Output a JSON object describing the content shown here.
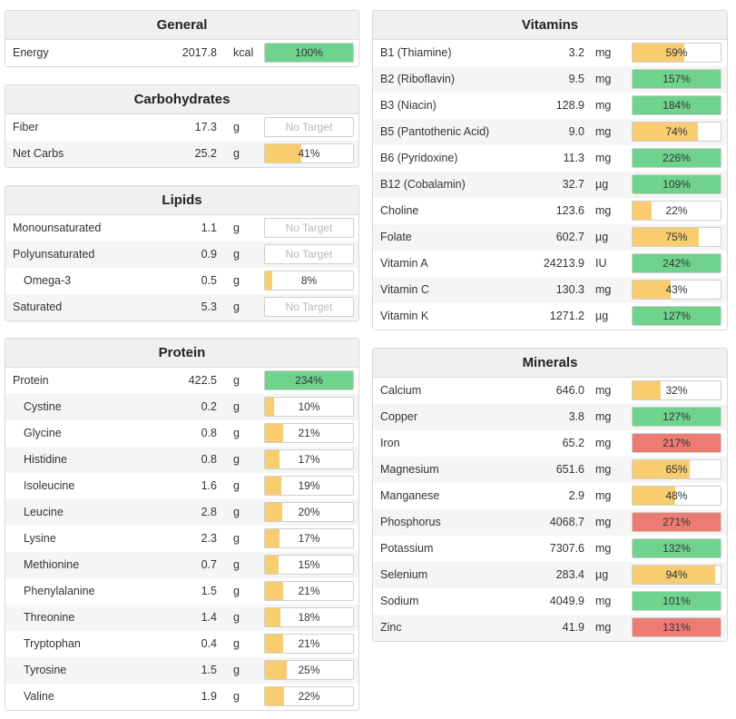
{
  "colors": {
    "green": "#6fd38e",
    "yellow": "#f7cd6f",
    "red": "#ec7b74"
  },
  "sections": [
    {
      "id": "general",
      "title": "General",
      "side": "left",
      "rows": [
        {
          "name": "Energy",
          "amount": "2017.8",
          "unit": "kcal",
          "pct": "100%",
          "fill": 1.0,
          "color": "green"
        }
      ]
    },
    {
      "id": "carbohydrates",
      "title": "Carbohydrates",
      "side": "left",
      "rows": [
        {
          "name": "Fiber",
          "amount": "17.3",
          "unit": "g",
          "pct": "No Target",
          "fill": 0,
          "color": "none"
        },
        {
          "name": "Net Carbs",
          "amount": "25.2",
          "unit": "g",
          "pct": "41%",
          "fill": 0.41,
          "color": "yellow"
        }
      ]
    },
    {
      "id": "lipids",
      "title": "Lipids",
      "side": "left",
      "rows": [
        {
          "name": "Monounsaturated",
          "amount": "1.1",
          "unit": "g",
          "pct": "No Target",
          "fill": 0,
          "color": "none"
        },
        {
          "name": "Polyunsaturated",
          "amount": "0.9",
          "unit": "g",
          "pct": "No Target",
          "fill": 0,
          "color": "none"
        },
        {
          "name": "Omega-3",
          "amount": "0.5",
          "unit": "g",
          "pct": "8%",
          "fill": 0.08,
          "color": "yellow",
          "indent": true
        },
        {
          "name": "Saturated",
          "amount": "5.3",
          "unit": "g",
          "pct": "No Target",
          "fill": 0,
          "color": "none"
        }
      ]
    },
    {
      "id": "protein",
      "title": "Protein",
      "side": "left",
      "rows": [
        {
          "name": "Protein",
          "amount": "422.5",
          "unit": "g",
          "pct": "234%",
          "fill": 1.0,
          "color": "green"
        },
        {
          "name": "Cystine",
          "amount": "0.2",
          "unit": "g",
          "pct": "10%",
          "fill": 0.1,
          "color": "yellow",
          "indent": true
        },
        {
          "name": "Glycine",
          "amount": "0.8",
          "unit": "g",
          "pct": "21%",
          "fill": 0.21,
          "color": "yellow",
          "indent": true
        },
        {
          "name": "Histidine",
          "amount": "0.8",
          "unit": "g",
          "pct": "17%",
          "fill": 0.17,
          "color": "yellow",
          "indent": true
        },
        {
          "name": "Isoleucine",
          "amount": "1.6",
          "unit": "g",
          "pct": "19%",
          "fill": 0.19,
          "color": "yellow",
          "indent": true
        },
        {
          "name": "Leucine",
          "amount": "2.8",
          "unit": "g",
          "pct": "20%",
          "fill": 0.2,
          "color": "yellow",
          "indent": true
        },
        {
          "name": "Lysine",
          "amount": "2.3",
          "unit": "g",
          "pct": "17%",
          "fill": 0.17,
          "color": "yellow",
          "indent": true
        },
        {
          "name": "Methionine",
          "amount": "0.7",
          "unit": "g",
          "pct": "15%",
          "fill": 0.15,
          "color": "yellow",
          "indent": true
        },
        {
          "name": "Phenylalanine",
          "amount": "1.5",
          "unit": "g",
          "pct": "21%",
          "fill": 0.21,
          "color": "yellow",
          "indent": true
        },
        {
          "name": "Threonine",
          "amount": "1.4",
          "unit": "g",
          "pct": "18%",
          "fill": 0.18,
          "color": "yellow",
          "indent": true
        },
        {
          "name": "Tryptophan",
          "amount": "0.4",
          "unit": "g",
          "pct": "21%",
          "fill": 0.21,
          "color": "yellow",
          "indent": true
        },
        {
          "name": "Tyrosine",
          "amount": "1.5",
          "unit": "g",
          "pct": "25%",
          "fill": 0.25,
          "color": "yellow",
          "indent": true
        },
        {
          "name": "Valine",
          "amount": "1.9",
          "unit": "g",
          "pct": "22%",
          "fill": 0.22,
          "color": "yellow",
          "indent": true
        }
      ]
    },
    {
      "id": "vitamins",
      "title": "Vitamins",
      "side": "right",
      "rows": [
        {
          "name": "B1 (Thiamine)",
          "amount": "3.2",
          "unit": "mg",
          "pct": "59%",
          "fill": 0.59,
          "color": "yellow"
        },
        {
          "name": "B2 (Riboflavin)",
          "amount": "9.5",
          "unit": "mg",
          "pct": "157%",
          "fill": 1.0,
          "color": "green"
        },
        {
          "name": "B3 (Niacin)",
          "amount": "128.9",
          "unit": "mg",
          "pct": "184%",
          "fill": 1.0,
          "color": "green"
        },
        {
          "name": "B5 (Pantothenic Acid)",
          "amount": "9.0",
          "unit": "mg",
          "pct": "74%",
          "fill": 0.74,
          "color": "yellow"
        },
        {
          "name": "B6 (Pyridoxine)",
          "amount": "11.3",
          "unit": "mg",
          "pct": "226%",
          "fill": 1.0,
          "color": "green"
        },
        {
          "name": "B12 (Cobalamin)",
          "amount": "32.7",
          "unit": "µg",
          "pct": "109%",
          "fill": 1.0,
          "color": "green"
        },
        {
          "name": "Choline",
          "amount": "123.6",
          "unit": "mg",
          "pct": "22%",
          "fill": 0.22,
          "color": "yellow"
        },
        {
          "name": "Folate",
          "amount": "602.7",
          "unit": "µg",
          "pct": "75%",
          "fill": 0.75,
          "color": "yellow"
        },
        {
          "name": "Vitamin A",
          "amount": "24213.9",
          "unit": "IU",
          "pct": "242%",
          "fill": 1.0,
          "color": "green"
        },
        {
          "name": "Vitamin C",
          "amount": "130.3",
          "unit": "mg",
          "pct": "43%",
          "fill": 0.43,
          "color": "yellow"
        },
        {
          "name": "Vitamin K",
          "amount": "1271.2",
          "unit": "µg",
          "pct": "127%",
          "fill": 1.0,
          "color": "green"
        }
      ]
    },
    {
      "id": "minerals",
      "title": "Minerals",
      "side": "right",
      "rows": [
        {
          "name": "Calcium",
          "amount": "646.0",
          "unit": "mg",
          "pct": "32%",
          "fill": 0.32,
          "color": "yellow"
        },
        {
          "name": "Copper",
          "amount": "3.8",
          "unit": "mg",
          "pct": "127%",
          "fill": 1.0,
          "color": "green"
        },
        {
          "name": "Iron",
          "amount": "65.2",
          "unit": "mg",
          "pct": "217%",
          "fill": 1.0,
          "color": "red"
        },
        {
          "name": "Magnesium",
          "amount": "651.6",
          "unit": "mg",
          "pct": "65%",
          "fill": 0.65,
          "color": "yellow"
        },
        {
          "name": "Manganese",
          "amount": "2.9",
          "unit": "mg",
          "pct": "48%",
          "fill": 0.48,
          "color": "yellow"
        },
        {
          "name": "Phosphorus",
          "amount": "4068.7",
          "unit": "mg",
          "pct": "271%",
          "fill": 1.0,
          "color": "red"
        },
        {
          "name": "Potassium",
          "amount": "7307.6",
          "unit": "mg",
          "pct": "132%",
          "fill": 1.0,
          "color": "green"
        },
        {
          "name": "Selenium",
          "amount": "283.4",
          "unit": "µg",
          "pct": "94%",
          "fill": 0.94,
          "color": "yellow"
        },
        {
          "name": "Sodium",
          "amount": "4049.9",
          "unit": "mg",
          "pct": "101%",
          "fill": 1.0,
          "color": "green"
        },
        {
          "name": "Zinc",
          "amount": "41.9",
          "unit": "mg",
          "pct": "131%",
          "fill": 1.0,
          "color": "red"
        }
      ]
    }
  ]
}
